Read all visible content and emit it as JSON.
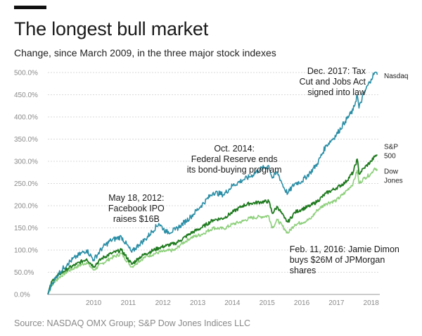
{
  "header": {
    "title": "The longest bull market",
    "subtitle": "Change, since March 2009, in the three major stock indexes"
  },
  "footer": {
    "source": "Source: NASDAQ OMX Group; S&P Dow Jones Indices LLC"
  },
  "colors": {
    "nasdaq": "#2a8ea6",
    "sp500": "#1f7a1f",
    "dow": "#8ccf7a",
    "grid": "#d9d9d9",
    "ticks": "#8a8a8a"
  },
  "chart_data": {
    "type": "line",
    "title": "The longest bull market",
    "subtitle": "Change, since March 2009, in the three major stock indexes",
    "xlabel": "",
    "ylabel": "",
    "xlim": [
      2009.18,
      2018.75
    ],
    "ylim": [
      0,
      500
    ],
    "grid": true,
    "y_ticks": [
      "0.0%",
      "50.0%",
      "100.0%",
      "150.0%",
      "200.0%",
      "250.0%",
      "300.0%",
      "350.0%",
      "400.0%",
      "450.0%",
      "500.0%"
    ],
    "x_ticks": [
      "2010",
      "2011",
      "2012",
      "2013",
      "2014",
      "2015",
      "2016",
      "2017",
      "2018"
    ],
    "series": [
      {
        "name": "Nasdaq",
        "color": "#2a8ea6",
        "points": [
          [
            2009.18,
            0
          ],
          [
            2009.3,
            25
          ],
          [
            2009.5,
            48
          ],
          [
            2009.75,
            70
          ],
          [
            2010.0,
            85
          ],
          [
            2010.3,
            100
          ],
          [
            2010.5,
            78
          ],
          [
            2010.75,
            105
          ],
          [
            2011.0,
            122
          ],
          [
            2011.3,
            130
          ],
          [
            2011.6,
            95
          ],
          [
            2011.8,
            112
          ],
          [
            2012.0,
            125
          ],
          [
            2012.38,
            160
          ],
          [
            2012.6,
            140
          ],
          [
            2012.85,
            145
          ],
          [
            2013.0,
            155
          ],
          [
            2013.3,
            175
          ],
          [
            2013.6,
            200
          ],
          [
            2013.95,
            230
          ],
          [
            2014.25,
            225
          ],
          [
            2014.5,
            245
          ],
          [
            2014.8,
            258
          ],
          [
            2015.0,
            265
          ],
          [
            2015.3,
            282
          ],
          [
            2015.55,
            290
          ],
          [
            2015.65,
            262
          ],
          [
            2015.8,
            275
          ],
          [
            2016.0,
            238
          ],
          [
            2016.1,
            228
          ],
          [
            2016.3,
            250
          ],
          [
            2016.5,
            255
          ],
          [
            2016.75,
            275
          ],
          [
            2016.95,
            295
          ],
          [
            2017.2,
            335
          ],
          [
            2017.5,
            360
          ],
          [
            2017.75,
            390
          ],
          [
            2017.98,
            415
          ],
          [
            2018.1,
            450
          ],
          [
            2018.15,
            420
          ],
          [
            2018.3,
            455
          ],
          [
            2018.5,
            485
          ],
          [
            2018.6,
            500
          ],
          [
            2018.68,
            495
          ]
        ]
      },
      {
        "name": "S&P 500",
        "color": "#1f7a1f",
        "points": [
          [
            2009.18,
            0
          ],
          [
            2009.3,
            30
          ],
          [
            2009.5,
            45
          ],
          [
            2009.75,
            58
          ],
          [
            2010.0,
            68
          ],
          [
            2010.3,
            80
          ],
          [
            2010.5,
            63
          ],
          [
            2010.75,
            82
          ],
          [
            2011.0,
            92
          ],
          [
            2011.3,
            100
          ],
          [
            2011.6,
            68
          ],
          [
            2011.8,
            82
          ],
          [
            2012.0,
            92
          ],
          [
            2012.38,
            105
          ],
          [
            2012.6,
            110
          ],
          [
            2012.85,
            115
          ],
          [
            2013.0,
            122
          ],
          [
            2013.3,
            138
          ],
          [
            2013.6,
            150
          ],
          [
            2013.95,
            168
          ],
          [
            2014.25,
            172
          ],
          [
            2014.5,
            185
          ],
          [
            2014.8,
            200
          ],
          [
            2015.0,
            205
          ],
          [
            2015.3,
            208
          ],
          [
            2015.55,
            210
          ],
          [
            2015.65,
            183
          ],
          [
            2015.8,
            198
          ],
          [
            2016.0,
            172
          ],
          [
            2016.1,
            163
          ],
          [
            2016.3,
            185
          ],
          [
            2016.5,
            192
          ],
          [
            2016.75,
            200
          ],
          [
            2016.95,
            210
          ],
          [
            2017.2,
            228
          ],
          [
            2017.5,
            240
          ],
          [
            2017.75,
            252
          ],
          [
            2017.98,
            275
          ],
          [
            2018.1,
            305
          ],
          [
            2018.15,
            272
          ],
          [
            2018.3,
            285
          ],
          [
            2018.5,
            300
          ],
          [
            2018.6,
            310
          ],
          [
            2018.68,
            315
          ]
        ]
      },
      {
        "name": "Dow Jones",
        "color": "#8ccf7a",
        "points": [
          [
            2009.18,
            0
          ],
          [
            2009.3,
            22
          ],
          [
            2009.5,
            38
          ],
          [
            2009.75,
            52
          ],
          [
            2010.0,
            62
          ],
          [
            2010.3,
            72
          ],
          [
            2010.5,
            55
          ],
          [
            2010.75,
            70
          ],
          [
            2011.0,
            82
          ],
          [
            2011.3,
            92
          ],
          [
            2011.6,
            62
          ],
          [
            2011.8,
            75
          ],
          [
            2012.0,
            85
          ],
          [
            2012.38,
            95
          ],
          [
            2012.6,
            98
          ],
          [
            2012.85,
            100
          ],
          [
            2013.0,
            112
          ],
          [
            2013.3,
            128
          ],
          [
            2013.6,
            135
          ],
          [
            2013.95,
            150
          ],
          [
            2014.25,
            148
          ],
          [
            2014.5,
            158
          ],
          [
            2014.8,
            165
          ],
          [
            2015.0,
            172
          ],
          [
            2015.3,
            175
          ],
          [
            2015.55,
            177
          ],
          [
            2015.65,
            150
          ],
          [
            2015.8,
            168
          ],
          [
            2016.0,
            148
          ],
          [
            2016.1,
            138
          ],
          [
            2016.3,
            158
          ],
          [
            2016.5,
            162
          ],
          [
            2016.75,
            170
          ],
          [
            2016.95,
            190
          ],
          [
            2017.2,
            205
          ],
          [
            2017.5,
            212
          ],
          [
            2017.75,
            230
          ],
          [
            2017.98,
            250
          ],
          [
            2018.1,
            280
          ],
          [
            2018.15,
            250
          ],
          [
            2018.3,
            262
          ],
          [
            2018.5,
            272
          ],
          [
            2018.6,
            285
          ],
          [
            2018.68,
            282
          ]
        ]
      }
    ],
    "series_labels": {
      "nasdaq": [
        "Nasdaq"
      ],
      "sp500": [
        "S&P",
        "500"
      ],
      "dow": [
        "Dow",
        "Jones"
      ]
    },
    "annotations": [
      {
        "id": "facebook-ipo",
        "x": 2012.38,
        "anchor": "middle",
        "lines": [
          "May 18, 2012:",
          "Facebook IPO",
          "raises $16B"
        ]
      },
      {
        "id": "fed-ends",
        "x": 2014.8,
        "anchor": "middle",
        "lines": [
          "Oct. 2014:",
          "Federal Reserve ends",
          "its bond-buying program"
        ]
      },
      {
        "id": "jamie-dimon",
        "x": 2016.11,
        "anchor": "start",
        "lines": [
          "Feb. 11, 2016: Jamie Dimon",
          "buys $26M of JPMorgan",
          "shares"
        ]
      },
      {
        "id": "tax-cut",
        "x": 2017.98,
        "anchor": "end",
        "lines": [
          "Dec. 2017: Tax",
          "Cut and Jobs Act",
          "signed into law"
        ]
      }
    ]
  }
}
